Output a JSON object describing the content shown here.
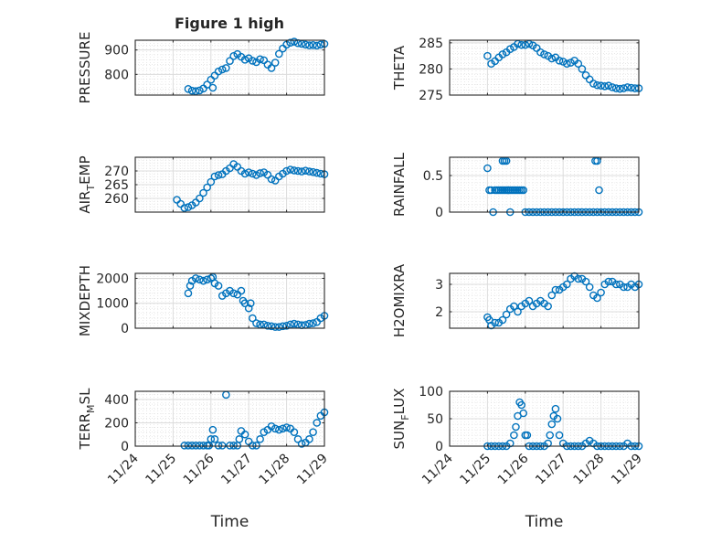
{
  "figure": {
    "title": "Figure 1 high",
    "marker_color": "#0072BD",
    "x_axis_label": "Time",
    "x_ticks": [
      "11/24",
      "11/25",
      "11/26",
      "11/27",
      "11/28",
      "11/29"
    ]
  },
  "chart_data": [
    {
      "type": "scatter",
      "name": "pressure",
      "col": 0,
      "row": 0,
      "ylabel": "PRESSURE",
      "ylim": [
        715,
        940
      ],
      "yticks": [
        800,
        900
      ],
      "xlim": [
        0,
        5
      ],
      "x": [
        1.4,
        1.5,
        1.6,
        1.7,
        1.8,
        1.9,
        2.0,
        2.05,
        2.1,
        2.2,
        2.3,
        2.4,
        2.5,
        2.6,
        2.7,
        2.8,
        2.9,
        3.0,
        3.1,
        3.2,
        3.3,
        3.4,
        3.5,
        3.6,
        3.7,
        3.8,
        3.9,
        4.0,
        4.1,
        4.2,
        4.3,
        4.4,
        4.5,
        4.6,
        4.7,
        4.8,
        4.9,
        5.0
      ],
      "y": [
        740,
        733,
        731,
        734,
        742,
        758,
        778,
        745,
        795,
        812,
        820,
        826,
        855,
        875,
        883,
        872,
        860,
        866,
        856,
        850,
        862,
        858,
        840,
        826,
        848,
        884,
        906,
        922,
        930,
        934,
        928,
        925,
        922,
        919,
        920,
        918,
        922,
        925
      ]
    },
    {
      "type": "scatter",
      "name": "theta",
      "col": 1,
      "row": 0,
      "ylabel": "THETA",
      "ylim": [
        275,
        285.5
      ],
      "yticks": [
        275,
        280,
        285
      ],
      "xlim": [
        0,
        5
      ],
      "x": [
        1.0,
        1.1,
        1.2,
        1.3,
        1.4,
        1.5,
        1.6,
        1.7,
        1.8,
        1.9,
        2.0,
        2.1,
        2.2,
        2.3,
        2.4,
        2.5,
        2.6,
        2.7,
        2.8,
        2.9,
        3.0,
        3.1,
        3.2,
        3.3,
        3.4,
        3.5,
        3.6,
        3.7,
        3.8,
        3.9,
        4.0,
        4.1,
        4.2,
        4.3,
        4.4,
        4.5,
        4.6,
        4.7,
        4.8,
        4.9,
        5.0
      ],
      "y": [
        282.5,
        281.0,
        281.5,
        282.2,
        282.8,
        283.2,
        283.8,
        284.2,
        284.8,
        284.6,
        284.6,
        284.8,
        284.5,
        284.0,
        283.2,
        282.8,
        282.5,
        282.0,
        282.2,
        281.6,
        281.4,
        281.0,
        281.2,
        281.6,
        281.0,
        280.0,
        278.8,
        278.0,
        277.2,
        276.9,
        276.8,
        276.7,
        276.8,
        276.5,
        276.3,
        276.2,
        276.3,
        276.5,
        276.4,
        276.3,
        276.3
      ]
    },
    {
      "type": "scatter",
      "name": "air-temp",
      "col": 0,
      "row": 1,
      "ylabel": "AIR_TEMP",
      "ylim": [
        255,
        275
      ],
      "yticks": [
        260,
        265,
        270
      ],
      "xlim": [
        0,
        5
      ],
      "x": [
        1.1,
        1.2,
        1.3,
        1.4,
        1.5,
        1.6,
        1.7,
        1.8,
        1.9,
        2.0,
        2.1,
        2.2,
        2.3,
        2.4,
        2.5,
        2.6,
        2.7,
        2.8,
        2.9,
        3.0,
        3.1,
        3.2,
        3.3,
        3.4,
        3.5,
        3.6,
        3.7,
        3.8,
        3.9,
        4.0,
        4.1,
        4.2,
        4.3,
        4.4,
        4.5,
        4.6,
        4.7,
        4.8,
        4.9,
        5.0
      ],
      "y": [
        259.5,
        258.0,
        256.5,
        256.8,
        257.5,
        258.5,
        260.0,
        262.0,
        264.0,
        266.0,
        268.0,
        268.5,
        268.8,
        270.0,
        271.0,
        272.5,
        271.5,
        270.0,
        269.0,
        269.5,
        269.0,
        268.5,
        269.2,
        269.5,
        268.6,
        267.0,
        266.5,
        268.0,
        269.0,
        270.0,
        270.5,
        270.2,
        270.0,
        269.8,
        270.1,
        269.8,
        269.6,
        269.3,
        269.0,
        268.8
      ]
    },
    {
      "type": "scatter",
      "name": "rainfall",
      "col": 1,
      "row": 1,
      "ylabel": "RAINFALL",
      "ylim": [
        0,
        0.75
      ],
      "yticks": [
        0,
        0.5
      ],
      "xlim": [
        0,
        5
      ],
      "x": [
        1.0,
        1.05,
        1.1,
        1.15,
        1.2,
        1.25,
        1.3,
        1.35,
        1.4,
        1.45,
        1.5,
        1.55,
        1.6,
        1.65,
        1.7,
        1.75,
        1.8,
        1.85,
        1.9,
        1.95,
        2.0,
        2.1,
        2.2,
        2.3,
        2.4,
        2.5,
        2.6,
        2.7,
        2.8,
        2.9,
        3.0,
        3.1,
        3.2,
        3.3,
        3.4,
        3.5,
        3.6,
        3.7,
        3.8,
        3.9,
        4.0,
        4.1,
        4.2,
        4.3,
        4.4,
        4.5,
        4.6,
        4.7,
        4.8,
        4.9,
        5.0,
        1.4,
        1.45,
        1.5,
        1.55,
        1.6,
        3.85,
        3.9,
        3.95
      ],
      "y": [
        0.6,
        0.3,
        0.3,
        0.0,
        0.3,
        0.3,
        0.3,
        0.3,
        0.3,
        0.3,
        0.3,
        0.3,
        0.0,
        0.3,
        0.3,
        0.3,
        0.3,
        0.3,
        0.3,
        0.3,
        0.0,
        0.0,
        0.0,
        0.0,
        0.0,
        0.0,
        0.0,
        0.0,
        0.0,
        0.0,
        0.0,
        0.0,
        0.0,
        0.0,
        0.0,
        0.0,
        0.0,
        0.0,
        0.0,
        0.0,
        0.0,
        0.0,
        0.0,
        0.0,
        0.0,
        0.0,
        0.0,
        0.0,
        0.0,
        0.0,
        0.0,
        0.7,
        0.7,
        0.7,
        0.3,
        0.3,
        0.7,
        0.7,
        0.3
      ]
    },
    {
      "type": "scatter",
      "name": "mixdepth",
      "col": 0,
      "row": 2,
      "ylabel": "MIXDEPTH",
      "ylim": [
        0,
        2200
      ],
      "yticks": [
        0,
        1000,
        2000
      ],
      "xlim": [
        0,
        5
      ],
      "x": [
        1.4,
        1.45,
        1.5,
        1.6,
        1.7,
        1.8,
        1.9,
        2.0,
        2.05,
        2.1,
        2.2,
        2.3,
        2.4,
        2.5,
        2.6,
        2.7,
        2.8,
        2.85,
        2.9,
        3.0,
        3.05,
        3.1,
        3.2,
        3.3,
        3.4,
        3.5,
        3.6,
        3.7,
        3.8,
        3.9,
        4.0,
        4.1,
        4.2,
        4.3,
        4.4,
        4.5,
        4.6,
        4.7,
        4.8,
        4.9,
        5.0
      ],
      "y": [
        1400,
        1700,
        1900,
        2000,
        1950,
        1900,
        1950,
        2000,
        2050,
        1800,
        1700,
        1300,
        1400,
        1500,
        1400,
        1350,
        1500,
        1100,
        1000,
        800,
        1000,
        400,
        200,
        150,
        150,
        100,
        80,
        50,
        50,
        80,
        100,
        150,
        180,
        150,
        120,
        130,
        180,
        200,
        250,
        400,
        500
      ]
    },
    {
      "type": "scatter",
      "name": "h2omixra",
      "col": 1,
      "row": 2,
      "ylabel": "H2OMIXRA",
      "ylim": [
        1.4,
        3.4
      ],
      "yticks": [
        2,
        3
      ],
      "xlim": [
        0,
        5
      ],
      "x": [
        1.0,
        1.05,
        1.1,
        1.2,
        1.3,
        1.4,
        1.5,
        1.6,
        1.7,
        1.8,
        1.9,
        2.0,
        2.1,
        2.2,
        2.3,
        2.4,
        2.5,
        2.6,
        2.7,
        2.8,
        2.9,
        3.0,
        3.1,
        3.2,
        3.3,
        3.4,
        3.5,
        3.6,
        3.7,
        3.8,
        3.9,
        4.0,
        4.1,
        4.2,
        4.3,
        4.4,
        4.5,
        4.6,
        4.7,
        4.8,
        4.9,
        5.0
      ],
      "y": [
        1.8,
        1.7,
        1.5,
        1.6,
        1.6,
        1.7,
        1.9,
        2.1,
        2.2,
        2.0,
        2.2,
        2.3,
        2.4,
        2.2,
        2.3,
        2.4,
        2.3,
        2.2,
        2.6,
        2.8,
        2.8,
        2.9,
        3.0,
        3.2,
        3.3,
        3.2,
        3.2,
        3.1,
        2.9,
        2.6,
        2.5,
        2.7,
        3.0,
        3.1,
        3.1,
        3.0,
        3.0,
        2.9,
        2.9,
        3.0,
        2.9,
        3.0
      ]
    },
    {
      "type": "scatter",
      "name": "terr-msl",
      "col": 0,
      "row": 3,
      "ylabel": "TERR_MSL",
      "ylim": [
        0,
        470
      ],
      "yticks": [
        0,
        200,
        400
      ],
      "xlim": [
        0,
        5
      ],
      "x": [
        1.3,
        1.4,
        1.5,
        1.6,
        1.7,
        1.8,
        1.9,
        1.95,
        2.0,
        2.05,
        2.1,
        2.2,
        2.3,
        2.4,
        2.5,
        2.6,
        2.7,
        2.75,
        2.8,
        2.9,
        3.0,
        3.1,
        3.2,
        3.3,
        3.4,
        3.5,
        3.6,
        3.7,
        3.8,
        3.9,
        4.0,
        4.1,
        4.2,
        4.3,
        4.4,
        4.5,
        4.6,
        4.7,
        4.8,
        4.9,
        5.0
      ],
      "y": [
        5,
        5,
        5,
        5,
        5,
        5,
        5,
        5,
        60,
        140,
        60,
        5,
        5,
        440,
        5,
        5,
        5,
        60,
        130,
        100,
        40,
        5,
        5,
        60,
        120,
        140,
        170,
        150,
        140,
        150,
        160,
        150,
        120,
        60,
        20,
        30,
        60,
        120,
        200,
        260,
        290
      ]
    },
    {
      "type": "scatter",
      "name": "sun-flux",
      "col": 1,
      "row": 3,
      "ylabel": "SUN_FLUX",
      "ylim": [
        0,
        100
      ],
      "yticks": [
        0,
        50,
        100
      ],
      "xlim": [
        0,
        5
      ],
      "x": [
        1.0,
        1.1,
        1.2,
        1.3,
        1.4,
        1.5,
        1.6,
        1.7,
        1.75,
        1.8,
        1.85,
        1.9,
        1.95,
        2.0,
        2.05,
        2.1,
        2.2,
        2.3,
        2.4,
        2.5,
        2.6,
        2.65,
        2.7,
        2.75,
        2.8,
        2.85,
        2.9,
        3.0,
        3.1,
        3.2,
        3.3,
        3.4,
        3.5,
        3.6,
        3.7,
        3.8,
        3.9,
        4.0,
        4.1,
        4.2,
        4.3,
        4.4,
        4.5,
        4.6,
        4.7,
        4.8,
        4.9,
        5.0
      ],
      "y": [
        0,
        0,
        0,
        0,
        0,
        0,
        5,
        20,
        35,
        55,
        80,
        75,
        60,
        20,
        20,
        0,
        0,
        0,
        0,
        0,
        5,
        20,
        40,
        55,
        68,
        50,
        20,
        5,
        0,
        0,
        0,
        0,
        0,
        5,
        10,
        5,
        0,
        0,
        0,
        0,
        0,
        0,
        0,
        0,
        5,
        0,
        0,
        0
      ]
    }
  ]
}
